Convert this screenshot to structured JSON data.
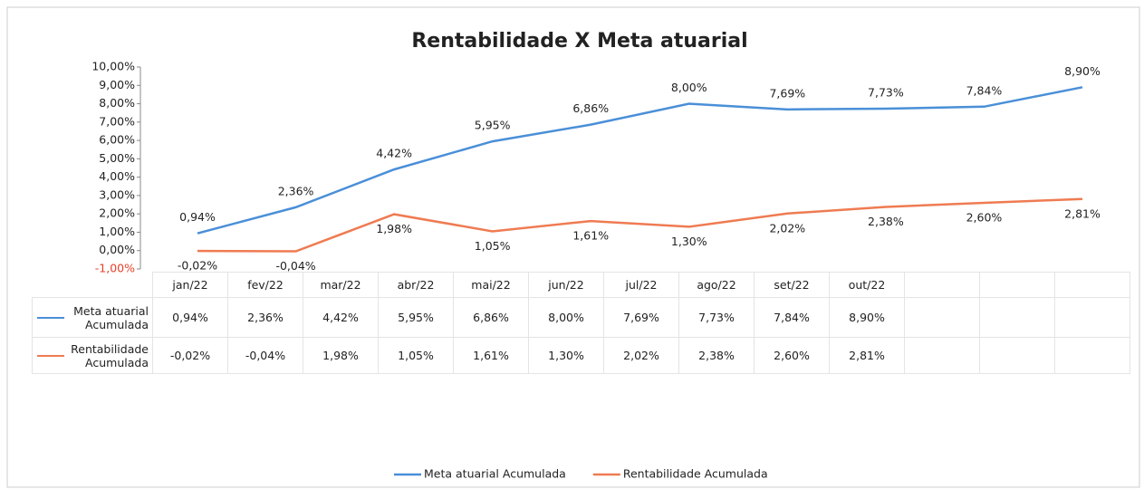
{
  "chart_data": {
    "type": "line",
    "title": "Rentabilidade X Meta atuarial",
    "categories": [
      "jan/22",
      "fev/22",
      "mar/22",
      "abr/22",
      "mai/22",
      "jun/22",
      "jul/22",
      "ago/22",
      "set/22",
      "out/22"
    ],
    "series": [
      {
        "name": "Meta atuarial Acumulada",
        "color": "#4a8fd8",
        "values": [
          0.94,
          2.36,
          4.42,
          5.95,
          6.86,
          8.0,
          7.69,
          7.73,
          7.84,
          8.9
        ],
        "value_labels": [
          "0,94%",
          "2,36%",
          "4,42%",
          "5,95%",
          "6,86%",
          "8,00%",
          "7,69%",
          "7,73%",
          "7,84%",
          "8,90%"
        ]
      },
      {
        "name": "Rentabilidade Acumulada",
        "color": "#ef7b52",
        "values": [
          -0.02,
          -0.04,
          1.98,
          1.05,
          1.61,
          1.3,
          2.02,
          2.38,
          2.6,
          2.81
        ],
        "value_labels": [
          "-0,02%",
          "-0,04%",
          "1,98%",
          "1,05%",
          "1,61%",
          "1,30%",
          "2,02%",
          "2,38%",
          "2,60%",
          "2,81%"
        ]
      }
    ],
    "ylim": [
      -1,
      10
    ],
    "yticks": [
      {
        "value": -1,
        "label": "-1,00%"
      },
      {
        "value": 0,
        "label": "0,00%"
      },
      {
        "value": 1,
        "label": "1,00%"
      },
      {
        "value": 2,
        "label": "2,00%"
      },
      {
        "value": 3,
        "label": "3,00%"
      },
      {
        "value": 4,
        "label": "4,00%"
      },
      {
        "value": 5,
        "label": "5,00%"
      },
      {
        "value": 6,
        "label": "6,00%"
      },
      {
        "value": 7,
        "label": "7,00%"
      },
      {
        "value": 8,
        "label": "8,00%"
      },
      {
        "value": 9,
        "label": "9,00%"
      },
      {
        "value": 10,
        "label": "10,00%"
      }
    ],
    "negative_tick_color": "#e8402a",
    "legend": "bottom"
  }
}
